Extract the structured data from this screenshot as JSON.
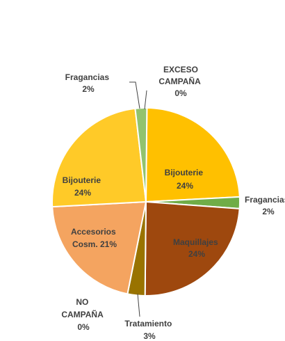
{
  "chart_data": {
    "type": "pie",
    "title": "",
    "slices": [
      {
        "label": "Bijouterie",
        "value": 24,
        "value_text": "24%",
        "color": "#FFC000",
        "group": "EXCESO CAMPAÑA"
      },
      {
        "label": "Fragancias",
        "value": 2,
        "value_text": "2%",
        "color": "#70AD47",
        "group": "EXCESO CAMPAÑA"
      },
      {
        "label": "Maquillajes",
        "value": 24,
        "value_text": "24%",
        "color": "#9E480E",
        "group": "NO CAMPAÑA"
      },
      {
        "label": "Tratamiento",
        "value": 3,
        "value_text": "3%",
        "color": "#997300",
        "group": "NO CAMPAÑA"
      },
      {
        "label": "Accesorios Cosm.",
        "value": 21,
        "value_text": "21%",
        "color": "#F4A460",
        "group": "NO CAMPAÑA"
      },
      {
        "label": "Bijouterie",
        "value": 24,
        "value_text": "24%",
        "color": "#FFCA28",
        "group": "NO CAMPAÑA"
      },
      {
        "label": "Fragancias",
        "value": 2,
        "value_text": "2%",
        "color": "#92C36E",
        "group": "NO CAMPAÑA"
      }
    ],
    "group_labels": [
      {
        "label": "EXCESO CAMPAÑA",
        "value": 0,
        "value_text": "0%"
      },
      {
        "label": "NO CAMPAÑA",
        "value": 0,
        "value_text": "0%"
      }
    ]
  }
}
